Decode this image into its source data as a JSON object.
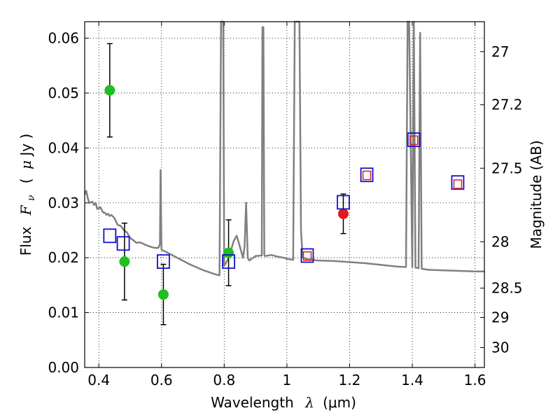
{
  "chart_data": {
    "type": "scatter",
    "xlabel_text": "Wavelength",
    "xlabel_symbol": "λ",
    "xlabel_unit": "(μm)",
    "ylabel_text": "Flux",
    "ylabel_symbol": "F",
    "ylabel_subscript": "ν",
    "ylabel_unit_open": "(",
    "ylabel_unit_mu": "μ",
    "ylabel_unit_rest": "Jy )",
    "y2label": "Magnitude (AB)",
    "xlim": [
      0.355,
      1.63
    ],
    "ylim": [
      0.0,
      0.063
    ],
    "grid": true,
    "x_ticks": [
      0.4,
      0.6,
      0.8,
      1.0,
      1.2,
      1.4,
      1.6
    ],
    "x_tick_labels": [
      "0.4",
      "0.6",
      "0.8",
      "1",
      "1.2",
      "1.4",
      "1.6"
    ],
    "y_ticks": [
      0.0,
      0.01,
      0.02,
      0.03,
      0.04,
      0.05,
      0.06
    ],
    "y_tick_labels": [
      "0.00",
      "0.01",
      "0.02",
      "0.03",
      "0.04",
      "0.05",
      "0.06"
    ],
    "y2_ticks": [
      27,
      27.2,
      27.5,
      28,
      28.5,
      29,
      30
    ],
    "y2_tick_labels": [
      "27",
      "27.2",
      "27.5",
      "28",
      "28.5",
      "29",
      "30"
    ],
    "colors": {
      "sed": "#808080",
      "green": "#1fbf1f",
      "red": "#e31a1c",
      "blue": "#1010d0",
      "errorbar": "#000000"
    },
    "sed_model": {
      "name": "",
      "x": [
        0.355,
        0.36,
        0.365,
        0.37,
        0.38,
        0.385,
        0.39,
        0.395,
        0.4,
        0.405,
        0.41,
        0.415,
        0.42,
        0.425,
        0.43,
        0.435,
        0.44,
        0.45,
        0.46,
        0.47,
        0.48,
        0.49,
        0.5,
        0.51,
        0.52,
        0.53,
        0.54,
        0.55,
        0.56,
        0.57,
        0.58,
        0.59,
        0.595,
        0.597,
        0.6,
        0.605,
        0.61,
        0.63,
        0.65,
        0.67,
        0.69,
        0.71,
        0.73,
        0.75,
        0.77,
        0.785,
        0.79,
        0.792,
        0.795,
        0.797,
        0.8,
        0.805,
        0.81,
        0.82,
        0.83,
        0.84,
        0.85,
        0.86,
        0.865,
        0.87,
        0.875,
        0.88,
        0.9,
        0.92,
        0.922,
        0.925,
        0.928,
        0.93,
        0.95,
        0.97,
        0.99,
        1.0,
        1.02,
        1.025,
        1.03,
        1.04,
        1.045,
        1.05,
        1.06,
        1.08,
        1.1,
        1.15,
        1.2,
        1.25,
        1.3,
        1.35,
        1.38,
        1.385,
        1.39,
        1.4,
        1.405,
        1.41,
        1.42,
        1.425,
        1.43,
        1.44,
        1.45,
        1.5,
        1.55,
        1.6,
        1.63
      ],
      "y": [
        0.0315,
        0.0322,
        0.0308,
        0.03,
        0.0302,
        0.0296,
        0.03,
        0.0289,
        0.029,
        0.0292,
        0.0286,
        0.0282,
        0.0282,
        0.0278,
        0.028,
        0.0276,
        0.0278,
        0.0272,
        0.026,
        0.0258,
        0.025,
        0.0246,
        0.0236,
        0.0232,
        0.0227,
        0.0228,
        0.0226,
        0.0223,
        0.0221,
        0.0219,
        0.0218,
        0.0218,
        0.0225,
        0.036,
        0.0215,
        0.0213,
        0.0212,
        0.0206,
        0.02,
        0.0194,
        0.0188,
        0.0183,
        0.0178,
        0.0174,
        0.017,
        0.0168,
        0.063,
        0.063,
        0.063,
        0.063,
        0.0185,
        0.019,
        0.0195,
        0.021,
        0.023,
        0.024,
        0.022,
        0.02,
        0.022,
        0.03,
        0.02,
        0.0195,
        0.0203,
        0.0204,
        0.062,
        0.062,
        0.0205,
        0.0203,
        0.0205,
        0.0202,
        0.02,
        0.0198,
        0.0196,
        0.063,
        0.063,
        0.063,
        0.025,
        0.0201,
        0.0198,
        0.0196,
        0.0195,
        0.0194,
        0.0192,
        0.019,
        0.0187,
        0.0184,
        0.0183,
        0.063,
        0.063,
        0.0183,
        0.063,
        0.0182,
        0.0181,
        0.061,
        0.018,
        0.0179,
        0.0178,
        0.0177,
        0.0176,
        0.0175,
        0.0175
      ]
    },
    "series": [
      {
        "name": "",
        "marker": "circle",
        "color": "green",
        "points": [
          {
            "x": 0.435,
            "y": 0.0505,
            "err": 0.0085
          },
          {
            "x": 0.482,
            "y": 0.0193,
            "err": 0.007
          },
          {
            "x": 0.606,
            "y": 0.0133,
            "err": 0.0055
          },
          {
            "x": 0.814,
            "y": 0.0209,
            "err": 0.006
          }
        ]
      },
      {
        "name": "",
        "marker": "circle",
        "color": "red",
        "points": [
          {
            "x": 1.18,
            "y": 0.028,
            "err": 0.0036
          }
        ]
      },
      {
        "name": "",
        "marker": "square",
        "color": "blue",
        "points": [
          {
            "x": 0.435,
            "y": 0.024
          },
          {
            "x": 0.478,
            "y": 0.0226
          },
          {
            "x": 0.606,
            "y": 0.0193
          },
          {
            "x": 0.814,
            "y": 0.0193
          },
          {
            "x": 1.065,
            "y": 0.0204
          },
          {
            "x": 1.18,
            "y": 0.0301
          },
          {
            "x": 1.255,
            "y": 0.0351
          },
          {
            "x": 1.405,
            "y": 0.0415
          },
          {
            "x": 1.545,
            "y": 0.0337
          }
        ]
      },
      {
        "name": "",
        "marker": "square-small",
        "color": "red",
        "points": [
          {
            "x": 1.065,
            "y": 0.0203
          },
          {
            "x": 1.255,
            "y": 0.035
          },
          {
            "x": 1.405,
            "y": 0.0414
          },
          {
            "x": 1.545,
            "y": 0.0334
          }
        ]
      }
    ]
  }
}
